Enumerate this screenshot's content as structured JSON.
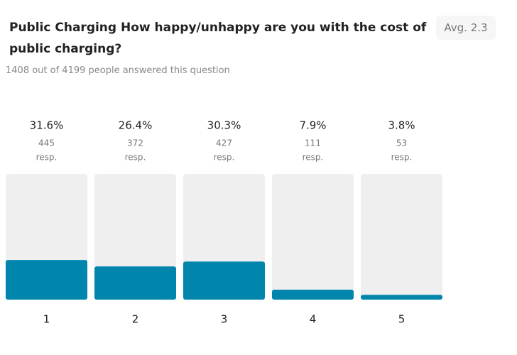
{
  "chart_data": {
    "type": "bar",
    "title": "Public Charging How happy/unhappy are you with the cost of public charging?",
    "average": "Avg. 2.3",
    "subtitle": "1408 out of 4199 people answered this question",
    "categories": [
      "1",
      "2",
      "3",
      "4",
      "5"
    ],
    "values": [
      31.6,
      26.4,
      30.3,
      7.9,
      3.8
    ],
    "value_labels": [
      "31.6%",
      "26.4%",
      "30.3%",
      "7.9%",
      "3.8%"
    ],
    "responses": [
      445,
      372,
      427,
      111,
      53
    ],
    "responses_unit": "resp.",
    "color": "#0086ad",
    "ylim": [
      0,
      100
    ]
  }
}
